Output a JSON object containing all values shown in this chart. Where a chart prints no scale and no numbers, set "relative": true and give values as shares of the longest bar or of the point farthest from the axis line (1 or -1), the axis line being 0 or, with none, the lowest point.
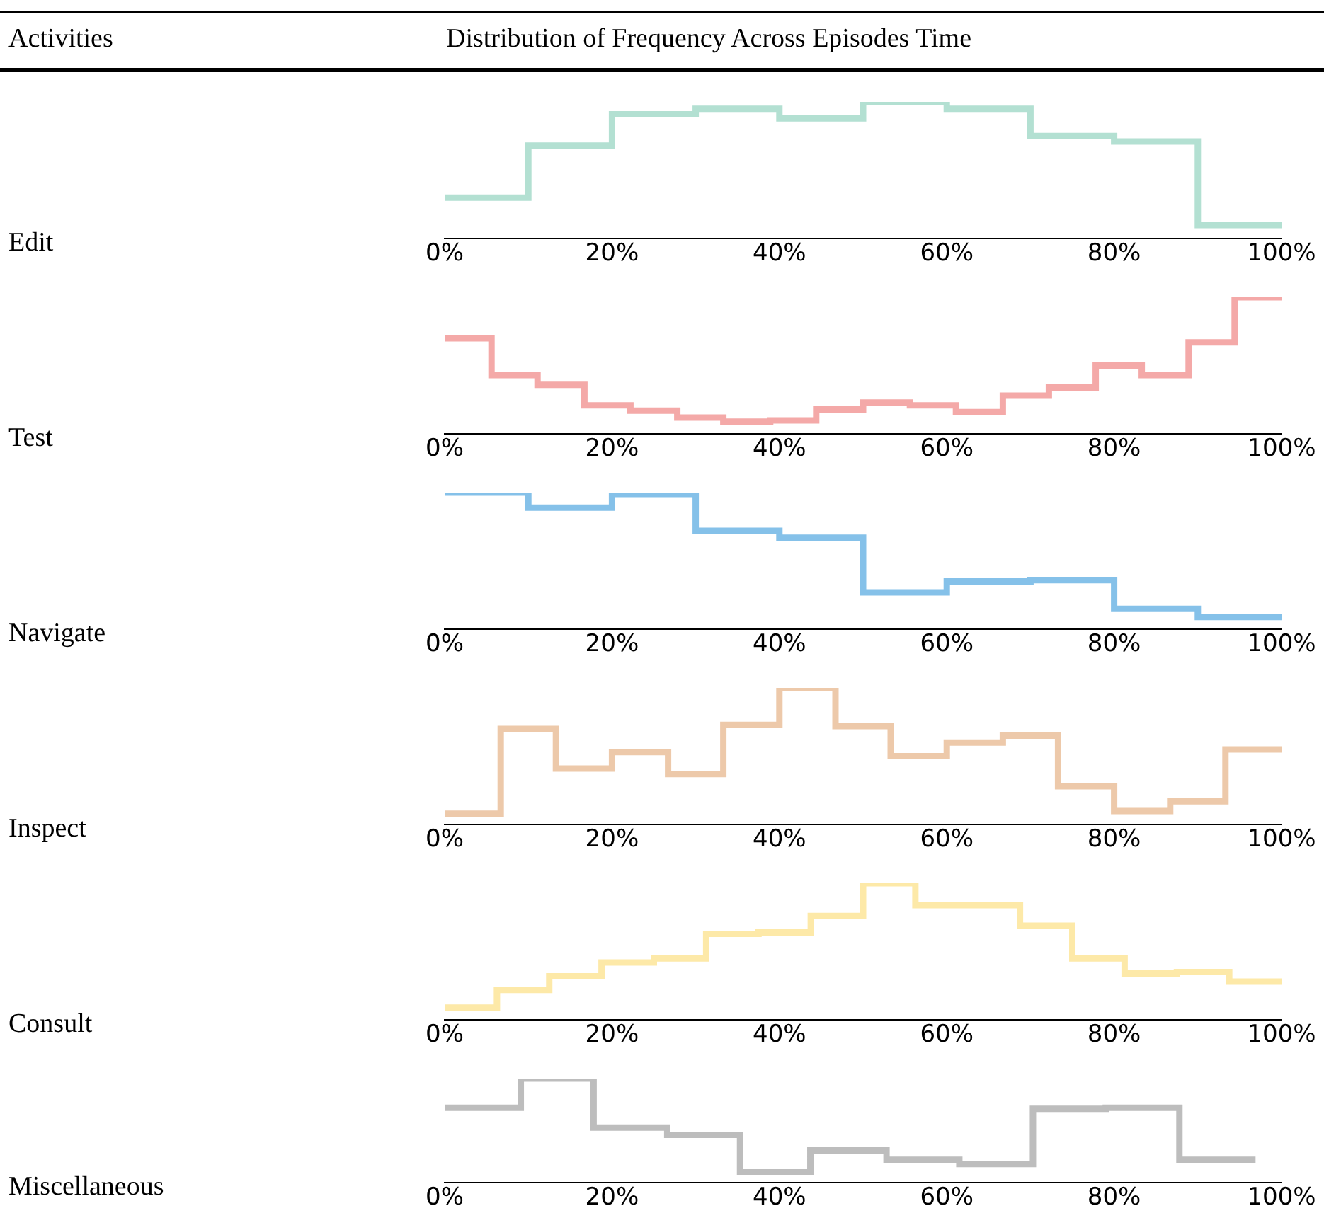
{
  "chart_data": [
    {
      "type": "step",
      "ylabel": "Edit",
      "annotations": [
        "Activities",
        "Distribution of Frequency Across Episodes Time"
      ],
      "relative": true,
      "xlim": [
        0,
        100
      ],
      "xticks": [
        {
          "value": 0,
          "label": "0%"
        },
        {
          "value": 20,
          "label": "20%"
        },
        {
          "value": 40,
          "label": "40%"
        },
        {
          "value": 60,
          "label": "60%"
        },
        {
          "value": 80,
          "label": "80%"
        },
        {
          "value": 100,
          "label": "100%"
        }
      ],
      "x": [
        0,
        10,
        20,
        30,
        40,
        50,
        60,
        70,
        80,
        90,
        100
      ],
      "series": [
        {
          "color": "#b3e0d2",
          "values": [
            0.3,
            0.68,
            0.91,
            0.95,
            0.88,
            1,
            0.95,
            0.75,
            0.71,
            0.1,
            0.1
          ]
        }
      ]
    },
    {
      "type": "step",
      "ylabel": "Test",
      "relative": true,
      "xlim": [
        0,
        100
      ],
      "xticks": [
        {
          "value": 0,
          "label": "0%"
        },
        {
          "value": 20,
          "label": "20%"
        },
        {
          "value": 40,
          "label": "40%"
        },
        {
          "value": 60,
          "label": "60%"
        },
        {
          "value": 80,
          "label": "80%"
        },
        {
          "value": 100,
          "label": "100%"
        }
      ],
      "x": [
        0,
        5.6,
        11.1,
        16.7,
        22.2,
        27.8,
        33.3,
        38.9,
        44.4,
        50,
        55.6,
        61.1,
        66.7,
        72.2,
        77.8,
        83.3,
        88.9,
        94.4,
        100
      ],
      "series": [
        {
          "color": "#f4a9a8",
          "values": [
            0.7,
            0.43,
            0.36,
            0.21,
            0.17,
            0.12,
            0.09,
            0.1,
            0.18,
            0.23,
            0.21,
            0.16,
            0.28,
            0.34,
            0.5,
            0.43,
            0.67,
            1,
            1
          ]
        }
      ]
    },
    {
      "type": "step",
      "ylabel": "Navigate",
      "relative": true,
      "xlim": [
        0,
        100
      ],
      "xticks": [
        {
          "value": 0,
          "label": "0%"
        },
        {
          "value": 20,
          "label": "20%"
        },
        {
          "value": 40,
          "label": "40%"
        },
        {
          "value": 60,
          "label": "60%"
        },
        {
          "value": 80,
          "label": "80%"
        },
        {
          "value": 100,
          "label": "100%"
        }
      ],
      "x": [
        0,
        10,
        20,
        30,
        40,
        50,
        60,
        70,
        80,
        90,
        100
      ],
      "series": [
        {
          "color": "#85c1e9",
          "values": [
            1,
            0.89,
            0.99,
            0.72,
            0.67,
            0.27,
            0.35,
            0.36,
            0.15,
            0.09,
            0.09
          ]
        }
      ]
    },
    {
      "type": "step",
      "ylabel": "Inspect",
      "relative": true,
      "xlim": [
        0,
        100
      ],
      "xticks": [
        {
          "value": 0,
          "label": "0%"
        },
        {
          "value": 20,
          "label": "20%"
        },
        {
          "value": 40,
          "label": "40%"
        },
        {
          "value": 60,
          "label": "60%"
        },
        {
          "value": 80,
          "label": "80%"
        },
        {
          "value": 100,
          "label": "100%"
        }
      ],
      "x": [
        0,
        6.7,
        13.3,
        20,
        26.7,
        33.3,
        40,
        46.7,
        53.3,
        60,
        66.7,
        73.3,
        80,
        86.7,
        93.3,
        100
      ],
      "series": [
        {
          "color": "#edc9aa",
          "values": [
            0.08,
            0.7,
            0.41,
            0.53,
            0.37,
            0.73,
            1,
            0.72,
            0.5,
            0.6,
            0.65,
            0.28,
            0.1,
            0.17,
            0.55,
            0.55
          ]
        }
      ]
    },
    {
      "type": "step",
      "ylabel": "Consult",
      "relative": true,
      "xlim": [
        0,
        100
      ],
      "xticks": [
        {
          "value": 0,
          "label": "0%"
        },
        {
          "value": 20,
          "label": "20%"
        },
        {
          "value": 40,
          "label": "40%"
        },
        {
          "value": 60,
          "label": "60%"
        },
        {
          "value": 80,
          "label": "80%"
        },
        {
          "value": 100,
          "label": "100%"
        }
      ],
      "x": [
        0,
        6.25,
        12.5,
        18.75,
        25,
        31.25,
        37.5,
        43.75,
        50,
        56.25,
        62.5,
        68.75,
        75,
        81.25,
        87.5,
        93.75,
        100
      ],
      "series": [
        {
          "color": "#fde9a8",
          "values": [
            0.09,
            0.22,
            0.32,
            0.42,
            0.45,
            0.63,
            0.64,
            0.76,
            1,
            0.84,
            0.84,
            0.69,
            0.45,
            0.34,
            0.35,
            0.28,
            0.28
          ]
        }
      ]
    },
    {
      "type": "step",
      "ylabel": "Miscellaneous",
      "relative": true,
      "xlim": [
        0,
        100
      ],
      "xticks": [
        {
          "value": 0,
          "label": "0%"
        },
        {
          "value": 20,
          "label": "20%"
        },
        {
          "value": 40,
          "label": "40%"
        },
        {
          "value": 60,
          "label": "60%"
        },
        {
          "value": 80,
          "label": "80%"
        },
        {
          "value": 100,
          "label": "100%"
        }
      ],
      "x": [
        0,
        9.1,
        17.8,
        26.6,
        35.3,
        43.7,
        52.8,
        61.5,
        70.3,
        79,
        87.8,
        96.9
      ],
      "series": [
        {
          "color": "#bdbdbd",
          "values": [
            0.72,
            1,
            0.53,
            0.46,
            0.1,
            0.31,
            0.22,
            0.18,
            0.71,
            0.72,
            0.22,
            0.22
          ]
        }
      ]
    }
  ]
}
